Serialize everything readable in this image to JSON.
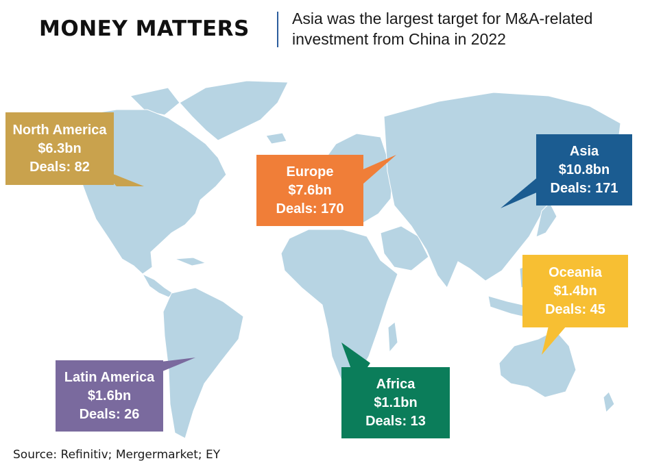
{
  "header": {
    "title": "MONEY MATTERS",
    "subtitle": "Asia was the largest target for M&A-related investment from China in 2022"
  },
  "colors": {
    "land": "#b7d4e3",
    "north_america": "#c9a24d",
    "europe": "#f07e38",
    "asia": "#1b5c91",
    "oceania": "#f7bf33",
    "latin_america": "#7a6a9e",
    "africa": "#0b7d5a"
  },
  "regions": {
    "north_america": {
      "name": "North America",
      "value": "$6.3bn",
      "deals": "Deals: 82"
    },
    "europe": {
      "name": "Europe",
      "value": "$7.6bn",
      "deals": "Deals: 170"
    },
    "asia": {
      "name": "Asia",
      "value": "$10.8bn",
      "deals": "Deals: 171"
    },
    "oceania": {
      "name": "Oceania",
      "value": "$1.4bn",
      "deals": "Deals: 45"
    },
    "latin_america": {
      "name": "Latin America",
      "value": "$1.6bn",
      "deals": "Deals: 26"
    },
    "africa": {
      "name": "Africa",
      "value": "$1.1bn",
      "deals": "Deals: 13"
    }
  },
  "source": "Source: Refinitiv; Mergermarket; EY"
}
